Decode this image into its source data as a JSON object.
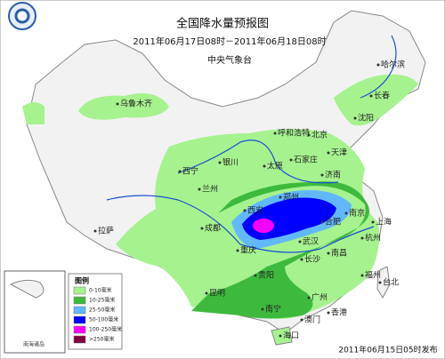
{
  "header": {
    "title": "全国降水量预报图",
    "period": "2011年06月17日08时－2011年06月18日08时",
    "issuer": "中央气象台"
  },
  "legend": {
    "title": "图例",
    "items": [
      {
        "label": "0-10毫米",
        "color": "#a6f28f"
      },
      {
        "label": "10-25毫米",
        "color": "#3dba3d"
      },
      {
        "label": "25-50毫米",
        "color": "#61b8ff"
      },
      {
        "label": "50-100毫米",
        "color": "#0000fe"
      },
      {
        "label": "100-250毫米",
        "color": "#fa00fa"
      },
      {
        "label": ">250毫米",
        "color": "#800040"
      }
    ]
  },
  "inset": {
    "label": "南海诸岛"
  },
  "cities": [
    "乌鲁木齐",
    "哈尔滨",
    "长春",
    "沈阳",
    "北京",
    "天津",
    "呼和浩特",
    "石家庄",
    "太原",
    "银川",
    "西宁",
    "兰州",
    "济南",
    "郑州",
    "西安",
    "合肥",
    "南京",
    "上海",
    "杭州",
    "武汉",
    "成都",
    "重庆",
    "长沙",
    "南昌",
    "拉萨",
    "贵阳",
    "昆明",
    "福州",
    "台北",
    "广州",
    "南宁",
    "香港",
    "澳门",
    "海口"
  ],
  "footer": {
    "issued": "2011年06月15日05时发布"
  }
}
